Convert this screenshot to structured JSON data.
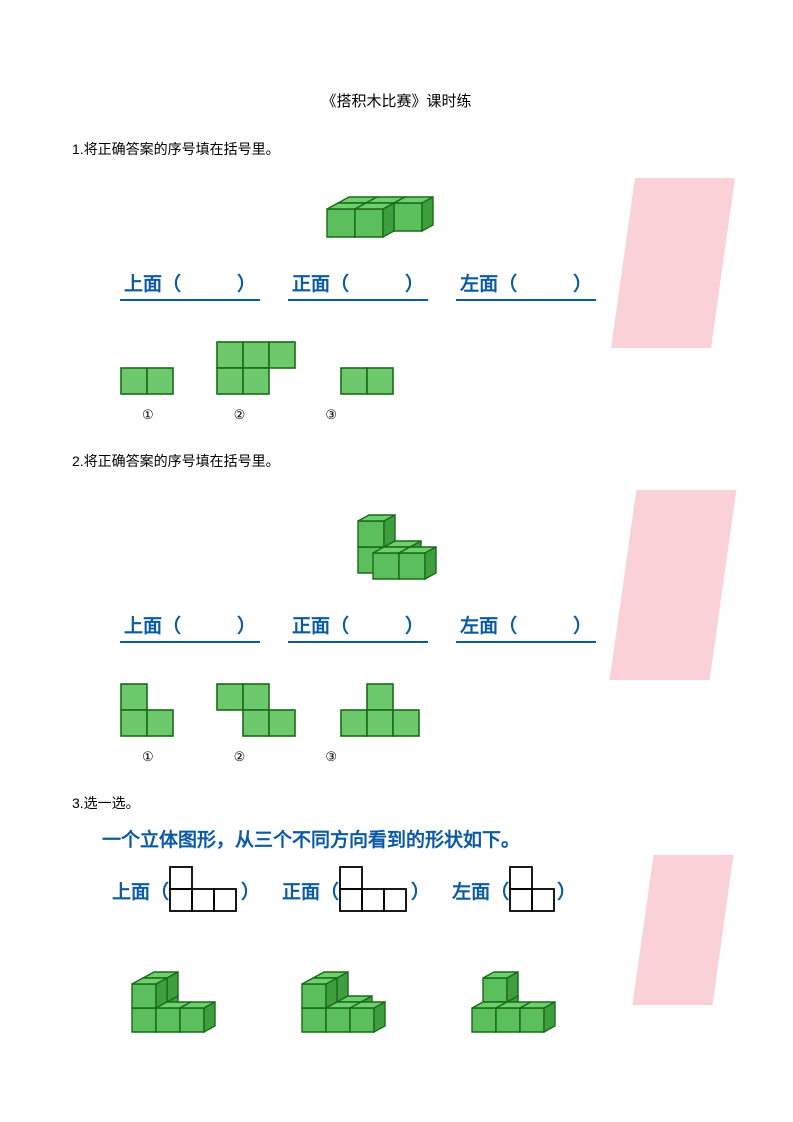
{
  "title": "《搭积木比赛》课时练",
  "q1": {
    "text": "1.将正确答案的序号填在括号里。",
    "views": {
      "top": "上面（",
      "front": "正面（",
      "left": "左面（",
      "close": "）"
    },
    "labels": [
      "①",
      "②",
      "③"
    ]
  },
  "q2": {
    "text": "2.将正确答案的序号填在括号里。",
    "views": {
      "top": "上面（",
      "front": "正面（",
      "left": "左面（",
      "close": "）"
    },
    "labels": [
      "①",
      "②",
      "③"
    ]
  },
  "q3": {
    "text": "3.选一选。",
    "heading": "一个立体图形，从三个不同方向看到的形状如下。",
    "views": {
      "top": "上面（",
      "front": "正面（",
      "left": "左面（",
      "close": "）"
    }
  },
  "colors": {
    "cube_fill": "#5bbf5b",
    "cube_top": "#6dd06d",
    "cube_side": "#3f9f3f",
    "cube_stroke": "#1a6b1a",
    "flat_fill": "#6cc96c",
    "flat_stroke": "#1a6b1a",
    "outline": "#000000",
    "blue": "#0b5aa5",
    "pink": "#f9c9cf",
    "bg": "#ffffff"
  },
  "grid": {
    "cell": 24,
    "iso_dx": 11,
    "iso_dy": 6
  }
}
